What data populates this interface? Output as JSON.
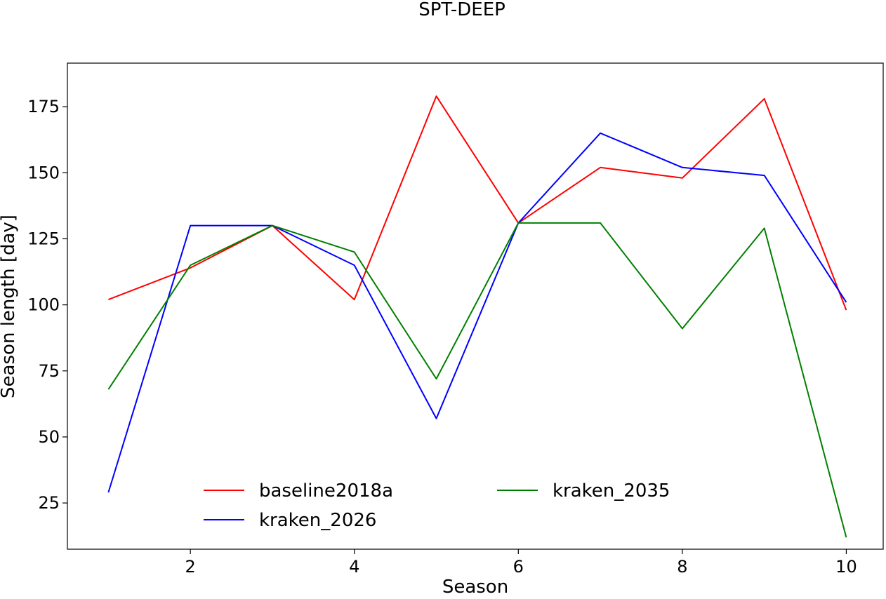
{
  "chart_data": {
    "type": "line",
    "title": "SPT-DEEP",
    "xlabel": "Season",
    "ylabel": "Season length [day]",
    "xlim": [
      0.5,
      10.45
    ],
    "ylim": [
      7.5,
      191.5
    ],
    "xticks": [
      2,
      4,
      6,
      8,
      10
    ],
    "yticks": [
      25,
      50,
      75,
      100,
      125,
      150,
      175
    ],
    "grid": false,
    "legend_position": "lower-center",
    "legend_columns": 2,
    "x": [
      1,
      2,
      3,
      4,
      5,
      6,
      7,
      8,
      9,
      10
    ],
    "series": [
      {
        "name": "baseline2018a",
        "color": "#ff0000",
        "values": [
          102,
          114,
          130,
          102,
          179,
          131,
          152,
          148,
          178,
          98
        ]
      },
      {
        "name": "kraken_2026",
        "color": "#0000ff",
        "values": [
          29,
          130,
          130,
          115,
          57,
          131,
          165,
          152,
          149,
          101
        ]
      },
      {
        "name": "kraken_2035",
        "color": "#008000",
        "values": [
          68,
          115,
          130,
          120,
          72,
          131,
          131,
          91,
          129,
          12
        ]
      }
    ]
  }
}
